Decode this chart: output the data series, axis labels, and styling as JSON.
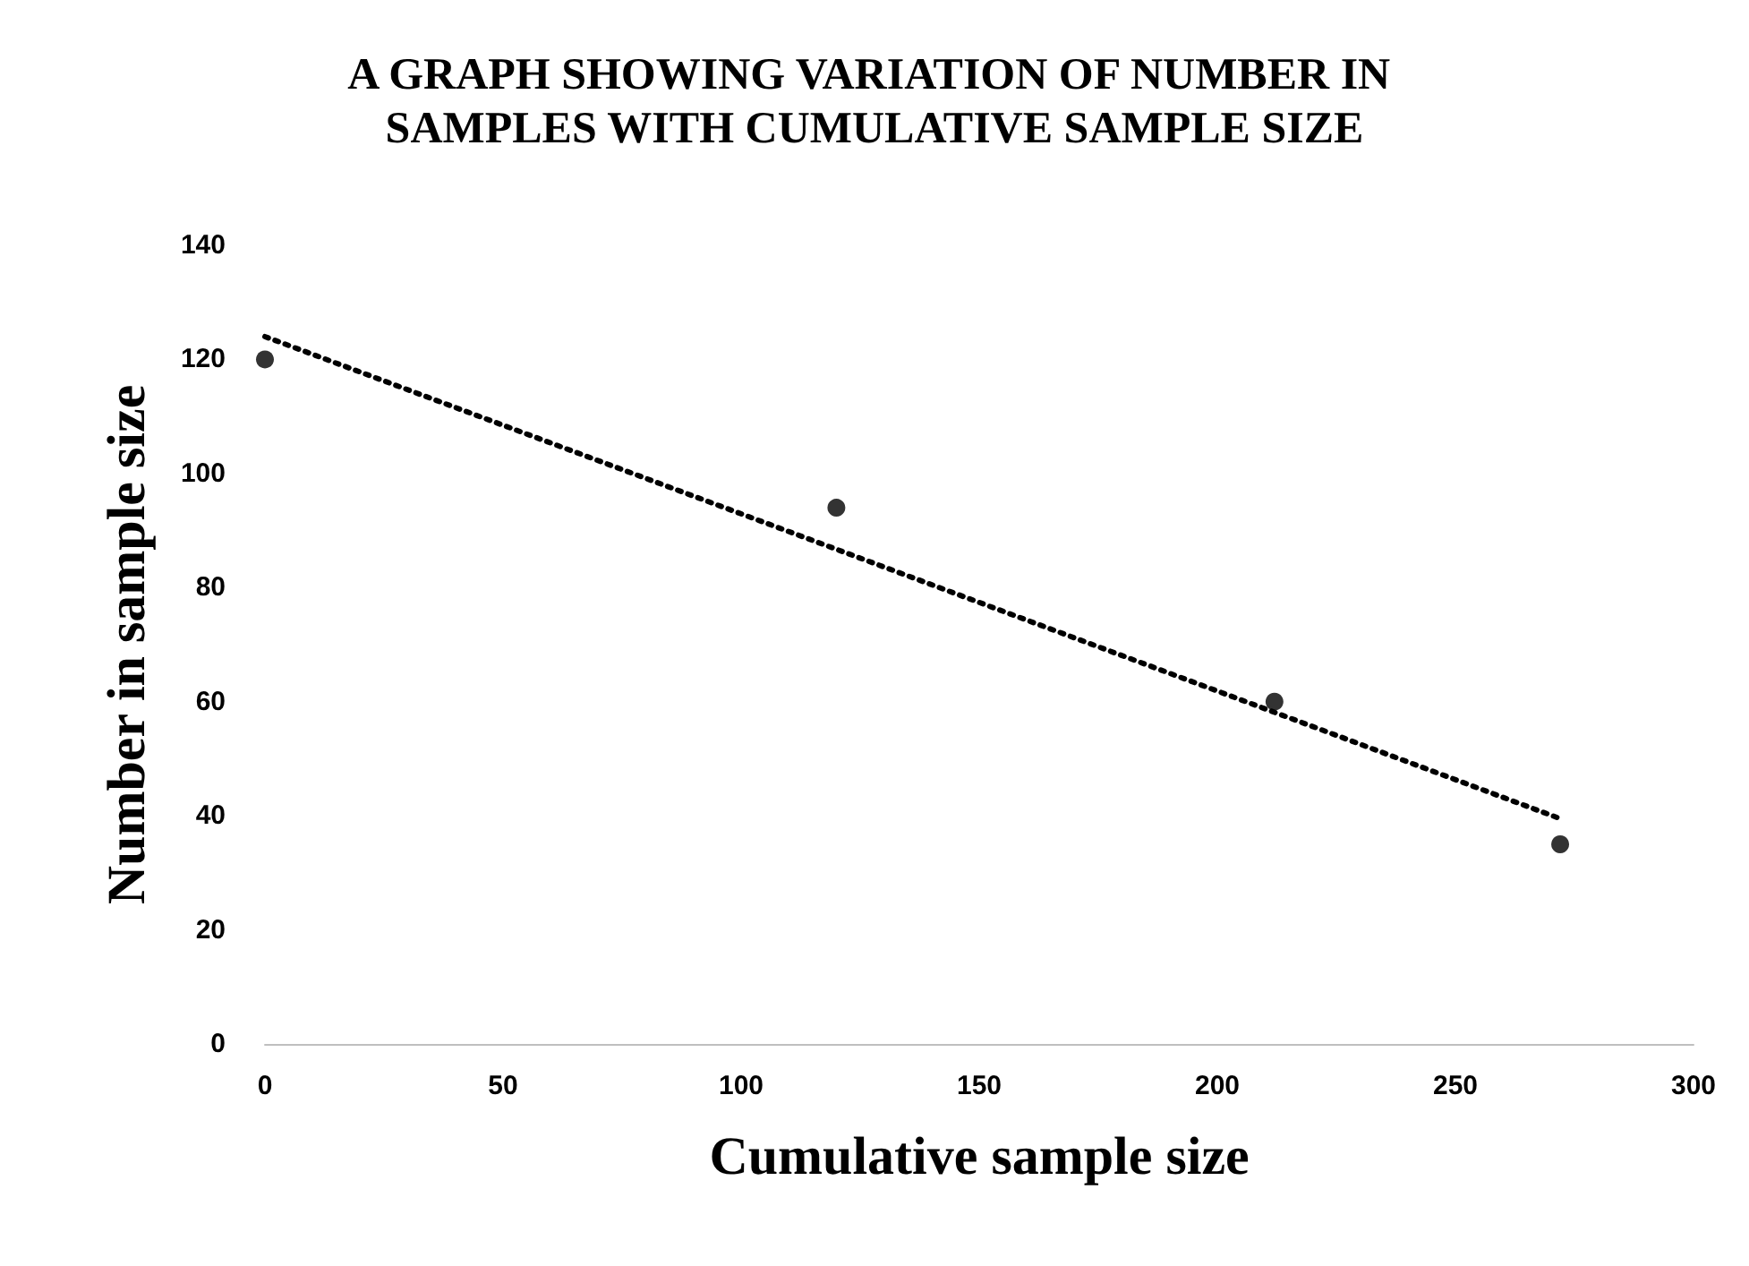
{
  "chart_data": {
    "type": "scatter",
    "title": "A GRAPH SHOWING VARIATION OF NUMBER IN SAMPLES WITH CUMULATIVE SAMPLE SIZE",
    "xlabel": "Cumulative sample size",
    "ylabel": "Number in sample size",
    "xlim": [
      0,
      300
    ],
    "xticks": [
      0,
      50,
      100,
      150,
      200,
      250,
      300
    ],
    "ylim": [
      0,
      140
    ],
    "yticks": [
      0,
      20,
      40,
      60,
      80,
      100,
      120,
      140
    ],
    "grid": false,
    "series": [
      {
        "color": "#000000",
        "marker": "circle",
        "x": [
          0,
          120,
          212,
          272
        ],
        "values": [
          120,
          94,
          60,
          35
        ]
      },
      {
        "type": "line",
        "color": "#000000",
        "marker": "none",
        "line_style": "dotted",
        "x": [
          0,
          272
        ],
        "values": [
          124,
          39.5
        ]
      }
    ]
  }
}
